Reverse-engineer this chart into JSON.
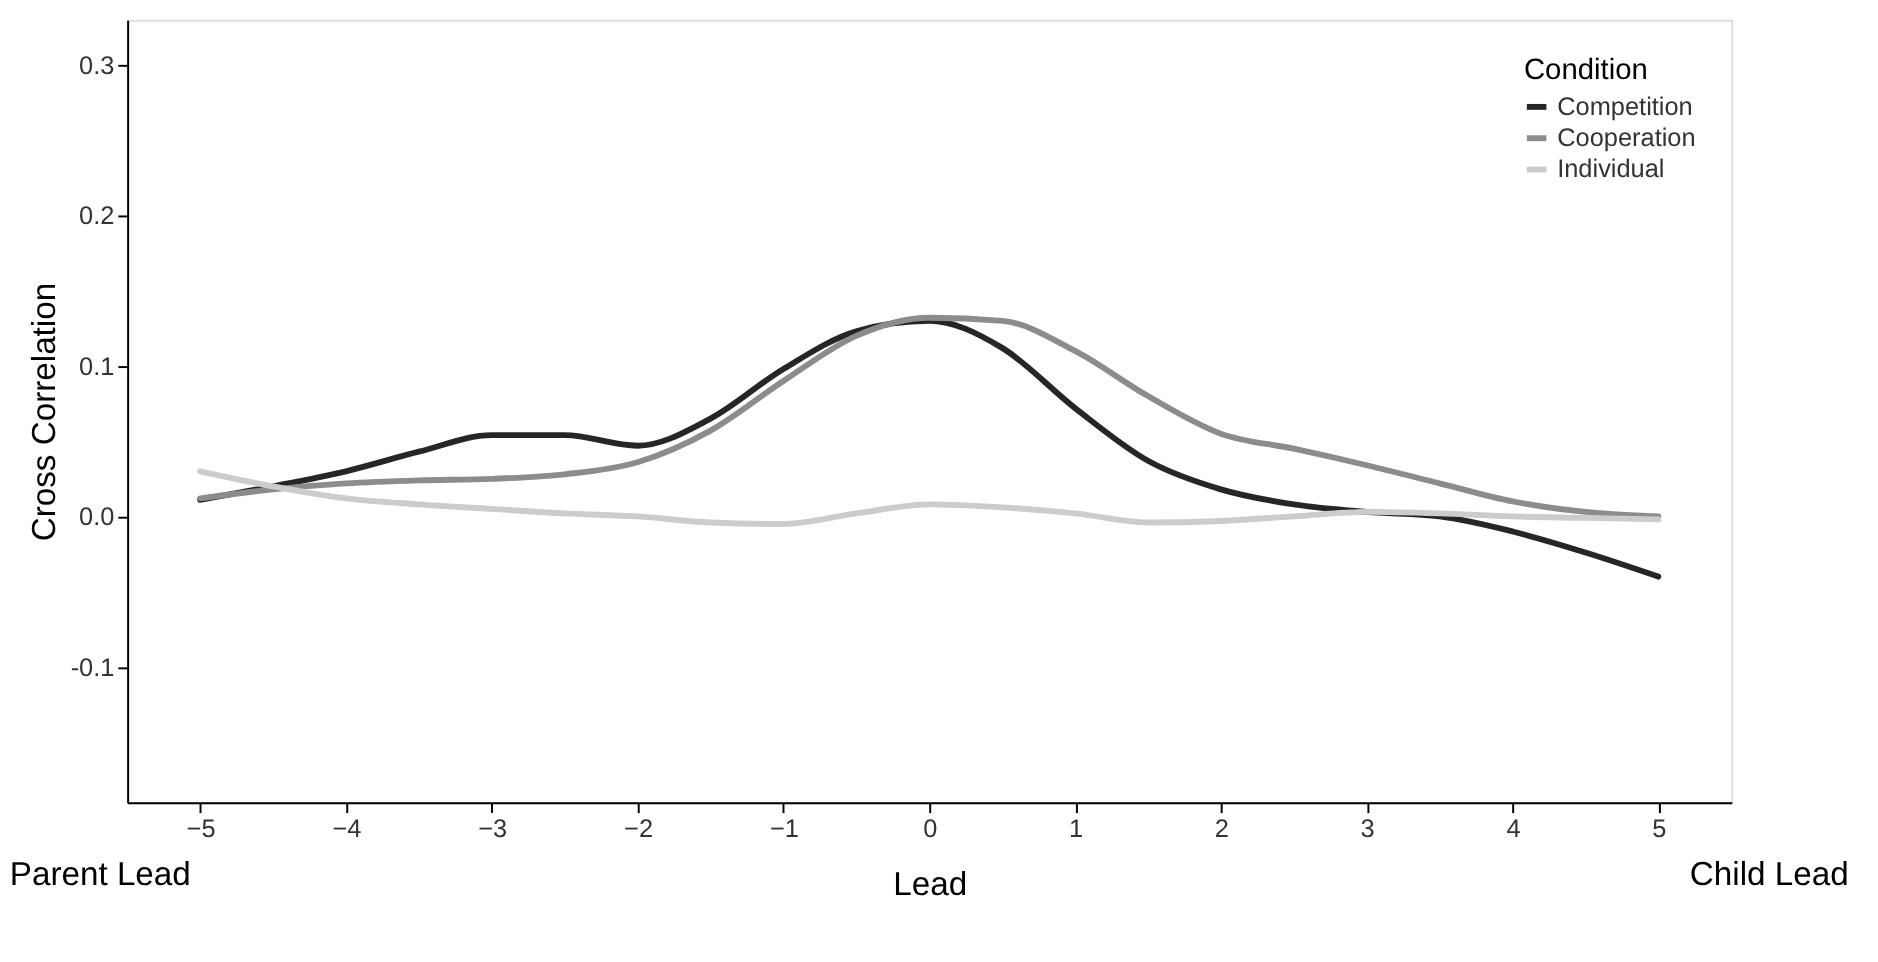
{
  "chart_data": {
    "type": "line",
    "xlabel": "Lead",
    "ylabel": "Cross Correlation",
    "legend_title": "Condition",
    "legend": "top right",
    "grid": false,
    "marker": "none",
    "line_style": "solid",
    "x": [
      -5,
      -4.5,
      -4,
      -3.5,
      -3,
      -2.5,
      -2,
      -1.5,
      -1,
      -0.5,
      0,
      0.5,
      1,
      1.5,
      2,
      2.5,
      3,
      3.5,
      4,
      4.5,
      5
    ],
    "series": [
      {
        "name": "Competition",
        "color": "#262626",
        "values": [
          0.011,
          0.02,
          0.03,
          0.043,
          0.054,
          0.054,
          0.047,
          0.065,
          0.098,
          0.123,
          0.13,
          0.112,
          0.072,
          0.037,
          0.018,
          0.008,
          0.003,
          0.0,
          -0.01,
          -0.024,
          -0.04
        ]
      },
      {
        "name": "Cooperation",
        "color": "#8c8c8c",
        "values": [
          0.012,
          0.018,
          0.022,
          0.024,
          0.025,
          0.028,
          0.036,
          0.057,
          0.09,
          0.12,
          0.132,
          0.13,
          0.11,
          0.08,
          0.055,
          0.045,
          0.034,
          0.022,
          0.01,
          0.003,
          0.0
        ]
      },
      {
        "name": "Individual",
        "color": "#cccccc",
        "values": [
          0.03,
          0.02,
          0.012,
          0.008,
          0.005,
          0.002,
          0.0,
          -0.004,
          -0.005,
          0.002,
          0.008,
          0.006,
          0.002,
          -0.004,
          -0.003,
          0.0,
          0.003,
          0.002,
          0.0,
          -0.001,
          -0.002
        ]
      }
    ],
    "xlim": [
      -5.5,
      5.5
    ],
    "ylim": [
      -0.19,
      0.33
    ],
    "xticks": [
      -5,
      -4,
      -3,
      -2,
      -1,
      0,
      1,
      2,
      3,
      4,
      5
    ],
    "yticks": [
      {
        "value": -0.1,
        "label": "-0.1"
      },
      {
        "value": 0,
        "label": "0.0"
      },
      {
        "value": 0.1,
        "label": "0.1"
      },
      {
        "value": 0.2,
        "label": "0.2"
      },
      {
        "value": 0.3,
        "label": "0.3"
      }
    ],
    "annotations": [
      "Parent Lead",
      "Child Lead"
    ]
  }
}
